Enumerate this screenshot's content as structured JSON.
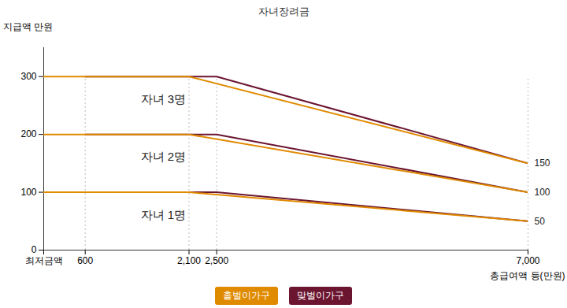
{
  "chart_data": {
    "type": "line",
    "title": "자녀장려금",
    "y_label": "지급액 만원",
    "x_label": "총급여액 등(만원)",
    "xlim": [
      0,
      7000
    ],
    "xticks": [
      {
        "value": 0,
        "label": "최저금액"
      },
      600,
      {
        "value": 2100,
        "label": "2,100"
      },
      {
        "value": 2500,
        "label": "2,500"
      },
      {
        "value": 7000,
        "label": "7,000"
      }
    ],
    "ylim": [
      0,
      350
    ],
    "yticks": [
      0,
      100,
      200,
      300
    ],
    "grid": true,
    "legend": "bottom",
    "series": [
      {
        "name": "맞벌이가구",
        "color": "#6b1530",
        "groups": [
          {
            "x": [
              600,
              2500,
              7000
            ],
            "values": [
              100,
              100,
              50
            ]
          },
          {
            "x": [
              600,
              2500,
              7000
            ],
            "values": [
              200,
              200,
              100
            ]
          },
          {
            "x": [
              600,
              2500,
              7000
            ],
            "values": [
              300,
              300,
              150
            ]
          }
        ]
      },
      {
        "name": "홑벌이가구",
        "color": "#e08a00",
        "groups": [
          {
            "x": [
              0,
              2100,
              7000
            ],
            "values": [
              100,
              100,
              50
            ]
          },
          {
            "x": [
              0,
              2100,
              7000
            ],
            "values": [
              200,
              200,
              100
            ]
          },
          {
            "x": [
              0,
              2100,
              7000
            ],
            "values": [
              300,
              300,
              150
            ]
          }
        ]
      }
    ],
    "annotations": [
      {
        "text": "자녀 3명",
        "x": 1400,
        "y": 261
      },
      {
        "text": "자녀 2명",
        "x": 1400,
        "y": 161
      },
      {
        "text": "자녀 1명",
        "x": 1400,
        "y": 60
      }
    ],
    "end_labels": [
      150,
      100,
      50
    ]
  }
}
